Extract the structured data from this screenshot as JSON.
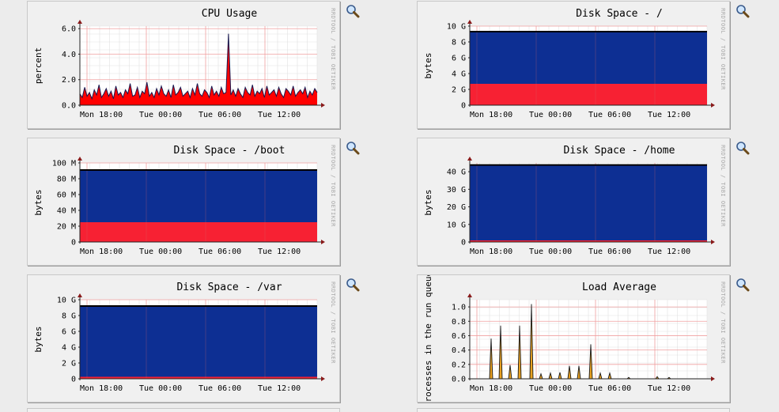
{
  "vertical_label": "RRDTOOL / TOBI OETIKER",
  "x_ticks": [
    "Mon 18:00",
    "Tue 00:00",
    "Tue 06:00",
    "Tue 12:00"
  ],
  "colors": {
    "used": "#0d2f93",
    "free_area": "#f72133",
    "cpu_area": "#ff0000",
    "cpu_line": "#1a1a50",
    "load_line": "#1a1a1a",
    "load_fill": "#e8a020"
  },
  "icon": "zoom-magnifier-icon",
  "chart_data": [
    {
      "id": "cpu",
      "type": "area",
      "title": "CPU Usage",
      "ylabel": "percent",
      "yticks": [
        {
          "v": 0,
          "t": "0.0"
        },
        {
          "v": 2,
          "t": "2.0"
        },
        {
          "v": 4,
          "t": "4.0"
        },
        {
          "v": 6,
          "t": "6.0"
        }
      ],
      "ylim": [
        0,
        6.2
      ],
      "x_start_hours": 13.0,
      "x_end_hours": 13.0,
      "series": [
        {
          "values": [
            0.9,
            0.6,
            1.4,
            0.7,
            1.0,
            0.5,
            1.2,
            0.8,
            1.6,
            0.6,
            0.9,
            1.3,
            0.7,
            1.1,
            0.5,
            1.5,
            0.8,
            1.0,
            0.6,
            1.2,
            0.9,
            1.7,
            0.7,
            0.8,
            1.4,
            0.6,
            1.1,
            0.9,
            1.8,
            0.7,
            1.0,
            0.6,
            1.3,
            0.8,
            1.5,
            0.9,
            0.7,
            1.2,
            0.6,
            1.6,
            0.8,
            1.0,
            1.4,
            0.7,
            0.9,
            1.1,
            0.6,
            1.3,
            0.8,
            1.7,
            0.9,
            0.7,
            1.2,
            1.0,
            0.6,
            1.5,
            0.8,
            1.1,
            0.7,
            1.4,
            0.9,
            1.0,
            5.6,
            0.8,
            1.2,
            0.7,
            1.3,
            0.9,
            0.6,
            1.4,
            1.0,
            0.8,
            1.6,
            0.7,
            1.1,
            0.9,
            1.3,
            0.6,
            1.5,
            0.8,
            1.0,
            1.2,
            0.7,
            1.4,
            0.9,
            0.6,
            1.3,
            1.1,
            0.8,
            1.5,
            0.7,
            1.0,
            1.2,
            0.9,
            1.4,
            0.6,
            1.1,
            0.8,
            1.3,
            1.0
          ]
        }
      ]
    },
    {
      "id": "disk-root",
      "type": "area",
      "title": "Disk Space - /",
      "ylabel": "bytes",
      "yticks": [
        {
          "v": 0,
          "t": "0"
        },
        {
          "v": 2,
          "t": "2 G"
        },
        {
          "v": 4,
          "t": "4 G"
        },
        {
          "v": 6,
          "t": "6 G"
        },
        {
          "v": 8,
          "t": "8 G"
        },
        {
          "v": 10,
          "t": "10 G"
        }
      ],
      "ylim": [
        0,
        10
      ],
      "total": 9.3,
      "lower": 2.7
    },
    {
      "id": "disk-boot",
      "type": "area",
      "title": "Disk Space - /boot",
      "ylabel": "bytes",
      "yticks": [
        {
          "v": 0,
          "t": "0"
        },
        {
          "v": 20,
          "t": "20 M"
        },
        {
          "v": 40,
          "t": "40 M"
        },
        {
          "v": 60,
          "t": "60 M"
        },
        {
          "v": 80,
          "t": "80 M"
        },
        {
          "v": 100,
          "t": "100 M"
        }
      ],
      "ylim": [
        0,
        100
      ],
      "total": 91,
      "lower": 25
    },
    {
      "id": "disk-home",
      "type": "area",
      "title": "Disk Space - /home",
      "ylabel": "bytes",
      "yticks": [
        {
          "v": 0,
          "t": "0"
        },
        {
          "v": 10,
          "t": "10 G"
        },
        {
          "v": 20,
          "t": "20 G"
        },
        {
          "v": 30,
          "t": "30 G"
        },
        {
          "v": 40,
          "t": "40 G"
        }
      ],
      "ylim": [
        0,
        45
      ],
      "total": 43.8,
      "lower": 0.9
    },
    {
      "id": "disk-var",
      "type": "area",
      "title": "Disk Space - /var",
      "ylabel": "bytes",
      "yticks": [
        {
          "v": 0,
          "t": "0"
        },
        {
          "v": 2,
          "t": "2 G"
        },
        {
          "v": 4,
          "t": "4 G"
        },
        {
          "v": 6,
          "t": "6 G"
        },
        {
          "v": 8,
          "t": "8 G"
        },
        {
          "v": 10,
          "t": "10 G"
        }
      ],
      "ylim": [
        0,
        10
      ],
      "total": 9.2,
      "lower": 0.25
    },
    {
      "id": "load",
      "type": "line",
      "title": "Load Average",
      "ylabel": "processes in the run queue",
      "yticks": [
        {
          "v": 0,
          "t": "0.0"
        },
        {
          "v": 0.2,
          "t": "0.2"
        },
        {
          "v": 0.4,
          "t": "0.4"
        },
        {
          "v": 0.6,
          "t": "0.6"
        },
        {
          "v": 0.8,
          "t": "0.8"
        },
        {
          "v": 1.0,
          "t": "1.0"
        }
      ],
      "ylim": [
        0,
        1.1
      ],
      "spikes": [
        [
          0.09,
          0.56
        ],
        [
          0.13,
          0.74
        ],
        [
          0.17,
          0.19
        ],
        [
          0.21,
          0.74
        ],
        [
          0.26,
          1.04
        ],
        [
          0.3,
          0.07
        ],
        [
          0.34,
          0.08
        ],
        [
          0.38,
          0.09
        ],
        [
          0.42,
          0.18
        ],
        [
          0.46,
          0.18
        ],
        [
          0.51,
          0.48
        ],
        [
          0.55,
          0.08
        ],
        [
          0.59,
          0.08
        ],
        [
          0.67,
          0.02
        ],
        [
          0.79,
          0.03
        ],
        [
          0.84,
          0.02
        ]
      ]
    }
  ]
}
